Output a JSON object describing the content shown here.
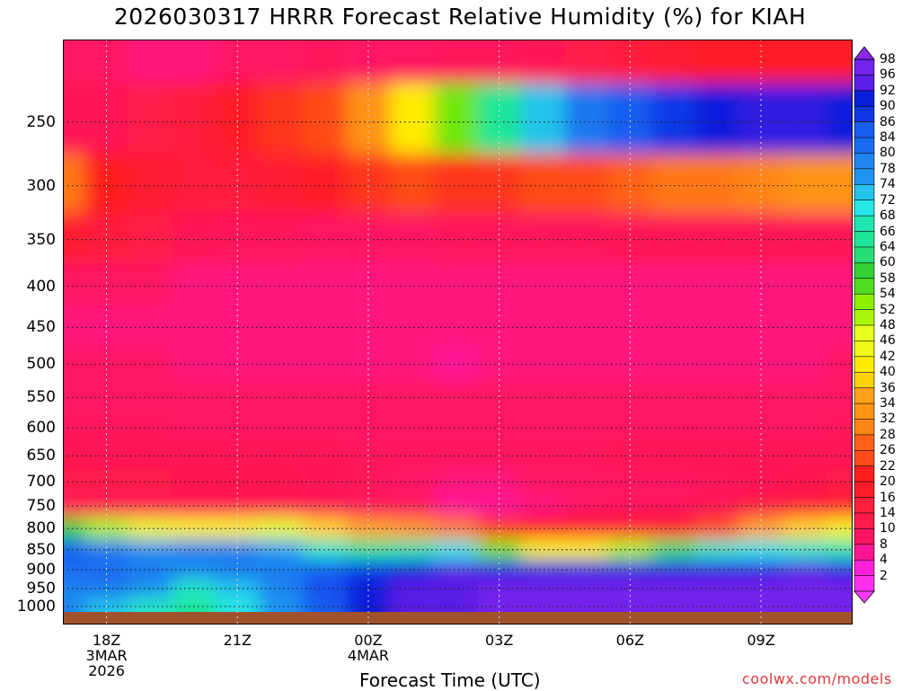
{
  "title": "2026030317 HRRR Forecast Relative Humidity (%) for KIAH",
  "credit": "coolwx.com/models",
  "chart_data": {
    "type": "heatmap",
    "title": "2026030317 HRRR Forecast Relative Humidity (%) for KIAH",
    "xlabel": "Forecast Time (UTC)",
    "ylabel": "",
    "x_hours": [
      17,
      18,
      19,
      20,
      21,
      22,
      23,
      24,
      25,
      26,
      27,
      28,
      29,
      30,
      31,
      32,
      33,
      34,
      35
    ],
    "y_levels": [
      200,
      250,
      300,
      350,
      400,
      450,
      500,
      550,
      600,
      650,
      700,
      750,
      800,
      850,
      900,
      950,
      1000
    ],
    "x_ticks": [
      {
        "label": "18Z",
        "sub1": "3MAR",
        "sub2": "2026"
      },
      {
        "label": "21Z",
        "sub1": "",
        "sub2": ""
      },
      {
        "label": "00Z",
        "sub1": "4MAR",
        "sub2": ""
      },
      {
        "label": "03Z",
        "sub1": "",
        "sub2": ""
      },
      {
        "label": "06Z",
        "sub1": "",
        "sub2": ""
      },
      {
        "label": "09Z",
        "sub1": "",
        "sub2": ""
      }
    ],
    "y_ticks": [
      "250",
      "300",
      "350",
      "400",
      "450",
      "500",
      "550",
      "600",
      "650",
      "700",
      "750",
      "800",
      "850",
      "900",
      "950",
      "1000"
    ],
    "colorbar_labels": [
      "98",
      "96",
      "92",
      "90",
      "86",
      "84",
      "80",
      "78",
      "74",
      "72",
      "68",
      "66",
      "64",
      "60",
      "58",
      "54",
      "52",
      "48",
      "46",
      "42",
      "40",
      "36",
      "34",
      "32",
      "28",
      "26",
      "22",
      "20",
      "16",
      "14",
      "10",
      "8",
      "4",
      "2"
    ],
    "rh": [
      [
        10,
        10,
        9,
        9,
        10,
        10,
        11,
        10,
        10,
        11,
        11,
        12,
        14,
        16,
        18,
        20,
        20,
        20,
        20
      ],
      [
        12,
        12,
        14,
        16,
        20,
        24,
        26,
        34,
        42,
        56,
        66,
        74,
        82,
        86,
        90,
        92,
        94,
        94,
        92
      ],
      [
        30,
        22,
        18,
        16,
        16,
        18,
        20,
        24,
        26,
        24,
        24,
        26,
        26,
        28,
        30,
        30,
        32,
        34,
        34
      ],
      [
        18,
        16,
        14,
        12,
        11,
        11,
        10,
        10,
        10,
        11,
        11,
        11,
        11,
        12,
        12,
        12,
        12,
        12,
        12
      ],
      [
        10,
        10,
        10,
        9,
        9,
        9,
        9,
        9,
        9,
        9,
        9,
        9,
        9,
        9,
        9,
        9,
        9,
        9,
        9
      ],
      [
        9,
        9,
        9,
        9,
        9,
        9,
        9,
        9,
        9,
        9,
        9,
        9,
        9,
        9,
        9,
        9,
        9,
        9,
        9
      ],
      [
        10,
        10,
        10,
        9,
        9,
        9,
        9,
        9,
        9,
        8,
        9,
        9,
        9,
        9,
        9,
        9,
        9,
        9,
        10
      ],
      [
        10,
        10,
        10,
        10,
        10,
        10,
        10,
        10,
        10,
        10,
        10,
        10,
        10,
        10,
        10,
        10,
        10,
        10,
        10
      ],
      [
        11,
        11,
        11,
        10,
        10,
        10,
        10,
        10,
        10,
        10,
        10,
        10,
        10,
        10,
        10,
        10,
        10,
        10,
        11
      ],
      [
        13,
        12,
        12,
        12,
        12,
        12,
        12,
        11,
        11,
        11,
        11,
        11,
        11,
        12,
        12,
        12,
        12,
        12,
        12
      ],
      [
        14,
        14,
        14,
        13,
        13,
        13,
        12,
        11,
        10,
        9,
        9,
        10,
        10,
        10,
        10,
        11,
        12,
        13,
        14
      ],
      [
        12,
        12,
        12,
        12,
        12,
        12,
        12,
        11,
        10,
        8,
        8,
        9,
        10,
        11,
        11,
        12,
        14,
        16,
        18
      ],
      [
        60,
        52,
        46,
        44,
        44,
        48,
        40,
        36,
        34,
        30,
        24,
        20,
        18,
        18,
        20,
        26,
        36,
        40,
        44
      ],
      [
        86,
        82,
        78,
        80,
        80,
        76,
        70,
        66,
        68,
        72,
        56,
        44,
        44,
        52,
        64,
        70,
        72,
        70,
        68
      ],
      [
        84,
        84,
        82,
        80,
        82,
        82,
        86,
        90,
        92,
        96,
        94,
        94,
        94,
        94,
        94,
        94,
        94,
        96,
        94
      ],
      [
        80,
        82,
        78,
        70,
        74,
        80,
        88,
        92,
        96,
        96,
        98,
        98,
        98,
        98,
        98,
        98,
        98,
        98,
        98
      ],
      [
        80,
        74,
        70,
        66,
        72,
        78,
        86,
        92,
        96,
        96,
        98,
        98,
        98,
        98,
        98,
        98,
        98,
        98,
        98
      ]
    ]
  }
}
